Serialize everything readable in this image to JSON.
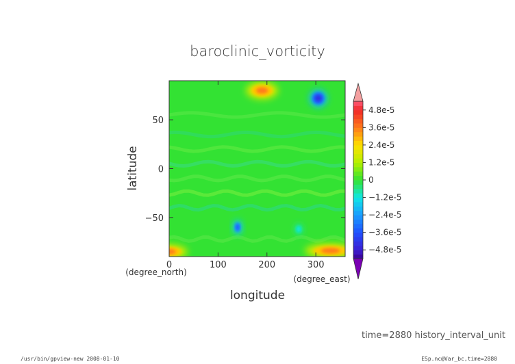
{
  "chart_data": {
    "type": "heatmap",
    "title": "baroclinic_vorticity",
    "xlabel": "longitude",
    "ylabel": "latitude",
    "x_unit": "(degree_east)",
    "y_unit": "(degree_north)",
    "xlim": [
      0,
      360
    ],
    "ylim": [
      -90,
      90
    ],
    "x_ticks": [
      0,
      100,
      200,
      300
    ],
    "y_ticks": [
      50,
      0,
      -50
    ],
    "grid": false,
    "legend": "colorbar on the right",
    "colorbar": {
      "ticks": [
        "4.8e-5",
        "3.6e-5",
        "2.4e-5",
        "1.2e-5",
        "0",
        "−1.2e-5",
        "−2.4e-5",
        "−3.6e-5",
        "−4.8e-5"
      ],
      "tick_values": [
        4.8e-05,
        3.6e-05,
        2.4e-05,
        1.2e-05,
        0,
        -1.2e-05,
        -2.4e-05,
        -3.6e-05,
        -4.8e-05
      ],
      "range": [
        -5.4e-05,
        5.4e-05
      ],
      "over_color": "#f4a0a0",
      "under_color": "#7a00b4"
    },
    "background_value": 0,
    "features": [
      {
        "lon": 190,
        "lat": 80,
        "value": 3.6e-05,
        "spread_lon": 22,
        "spread_lat": 6
      },
      {
        "lon": 305,
        "lat": 72,
        "value": -4.4e-05,
        "spread_lon": 12,
        "spread_lat": 6
      },
      {
        "lon": 140,
        "lat": -60,
        "value": -3.6e-05,
        "spread_lon": 6,
        "spread_lat": 5
      },
      {
        "lon": 265,
        "lat": -62,
        "value": -1.2e-05,
        "spread_lon": 6,
        "spread_lat": 4
      },
      {
        "lon": 0,
        "lat": -85,
        "value": 3.6e-05,
        "spread_lon": 25,
        "spread_lat": 5
      },
      {
        "lon": 330,
        "lat": -84,
        "value": 3.6e-05,
        "spread_lon": 35,
        "spread_lat": 5
      }
    ]
  },
  "annotations": {
    "time_info": "time=2880  history_interval_unit",
    "footer_left": "/usr/bin/gpview-new  2008-01-10",
    "footer_right": "ESp.nc@Var_bc,time=2880"
  },
  "colors": {
    "background_field": "#33e233"
  }
}
